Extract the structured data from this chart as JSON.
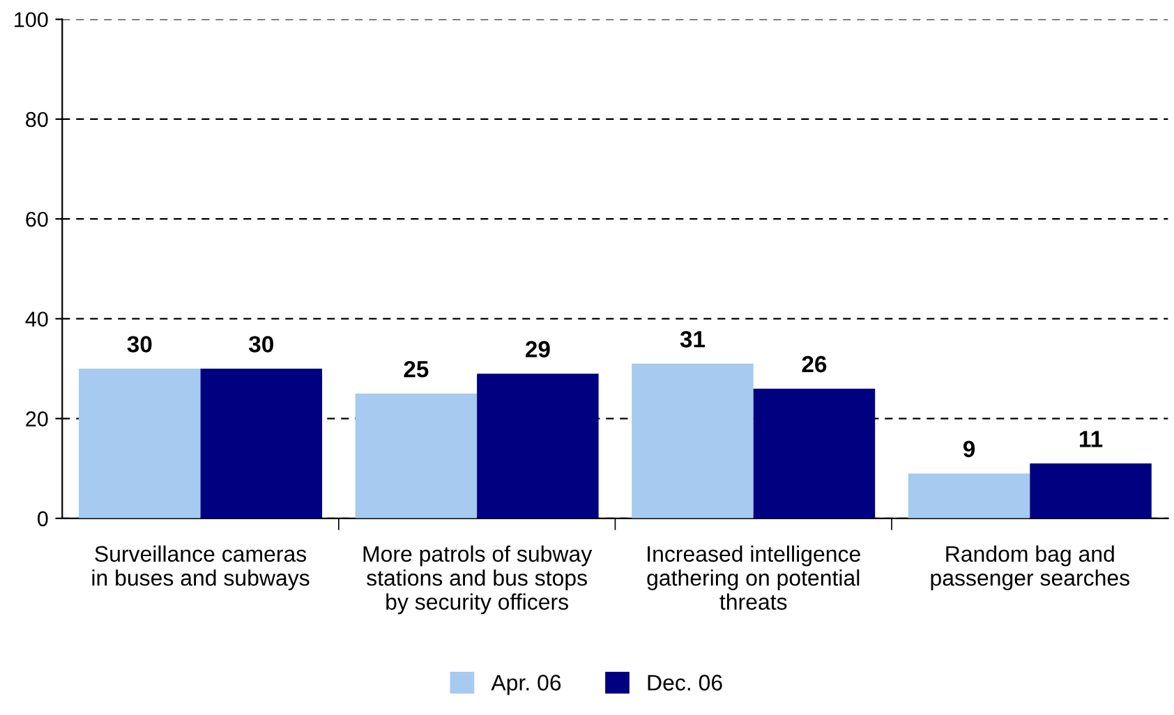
{
  "chart_data": {
    "type": "bar",
    "categories": [
      "Surveillance cameras\nin buses and subways",
      "More patrols of subway\nstations and bus stops\nby security officers",
      "Increased intelligence\ngathering on potential\nthreats",
      "Random bag and\npassenger searches"
    ],
    "series": [
      {
        "name": "Apr. 06",
        "color": "#a6caf0",
        "values": [
          30,
          25,
          31,
          9
        ]
      },
      {
        "name": "Dec. 06",
        "color": "#000080",
        "values": [
          30,
          29,
          26,
          11
        ]
      }
    ],
    "ylim": [
      0,
      100
    ],
    "yticks": [
      0,
      20,
      40,
      60,
      80,
      100
    ],
    "grid": "y",
    "legend": "bottom",
    "data_labels": true
  }
}
